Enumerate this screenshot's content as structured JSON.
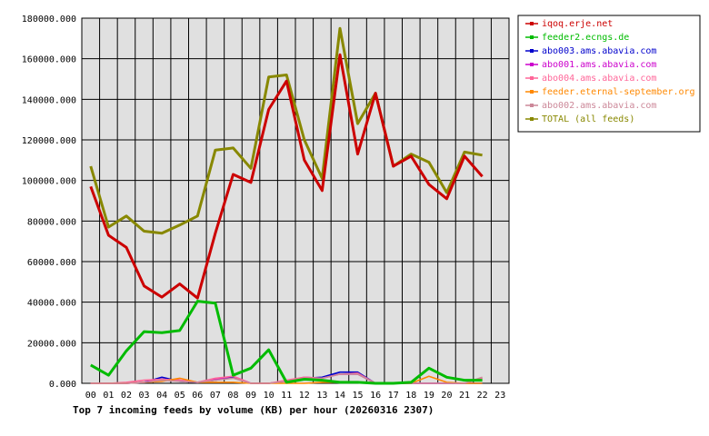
{
  "chart_data": {
    "type": "line",
    "title": "Top 7 incoming feeds by volume (KB) per hour (20260316 2307)",
    "xlabel": "",
    "ylabel": "",
    "ylim": [
      0,
      180000
    ],
    "y_ticks": [
      "0.000",
      "20000.000",
      "40000.000",
      "60000.000",
      "80000.000",
      "100000.000",
      "120000.000",
      "140000.000",
      "160000.000",
      "180000.000"
    ],
    "y_tick_values": [
      0,
      20000,
      40000,
      60000,
      80000,
      100000,
      120000,
      140000,
      160000,
      180000
    ],
    "categories": [
      "00",
      "01",
      "02",
      "03",
      "04",
      "05",
      "06",
      "07",
      "08",
      "09",
      "10",
      "11",
      "12",
      "13",
      "14",
      "15",
      "16",
      "17",
      "18",
      "19",
      "20",
      "21",
      "22",
      "23"
    ],
    "grid": true,
    "legend_position": "right",
    "series": [
      {
        "name": "iqoq.erje.net",
        "color": "#cc0000",
        "values": [
          97000,
          73000,
          67000,
          48000,
          42500,
          49000,
          42000,
          74000,
          103000,
          99000,
          135000,
          149000,
          110000,
          95000,
          162000,
          113000,
          143000,
          107000,
          112000,
          98000,
          91000,
          112000,
          102000,
          null
        ]
      },
      {
        "name": "feeder2.ecngs.de",
        "color": "#00bb00",
        "values": [
          9000,
          4000,
          16000,
          25500,
          25000,
          26000,
          40500,
          39500,
          4000,
          7500,
          16500,
          500,
          2000,
          1500,
          500,
          500,
          0,
          0,
          500,
          7500,
          3000,
          1500,
          1500,
          null
        ]
      },
      {
        "name": "abo003.ams.abavia.com",
        "color": "#0000cc",
        "values": [
          0,
          0,
          0,
          500,
          3000,
          1000,
          500,
          1500,
          3000,
          0,
          0,
          1000,
          2500,
          3000,
          5500,
          5500,
          0,
          0,
          0,
          0,
          0,
          0,
          0,
          null
        ]
      },
      {
        "name": "abo001.ams.abavia.com",
        "color": "#cc00cc",
        "values": [
          0,
          0,
          0,
          500,
          2000,
          1500,
          500,
          2000,
          3500,
          0,
          0,
          1000,
          3000,
          2500,
          4500,
          4500,
          0,
          0,
          0,
          0,
          0,
          0,
          2500,
          null
        ]
      },
      {
        "name": "abo004.ams.abavia.com",
        "color": "#ff6699",
        "values": [
          0,
          0,
          500,
          1500,
          2000,
          1500,
          500,
          2500,
          3500,
          0,
          0,
          1500,
          3000,
          2500,
          4500,
          5000,
          0,
          0,
          0,
          0,
          0,
          0,
          2500,
          null
        ]
      },
      {
        "name": "feeder.eternal-september.org",
        "color": "#ff8800",
        "values": [
          0,
          0,
          0,
          500,
          1000,
          2500,
          500,
          500,
          500,
          0,
          0,
          0,
          0,
          500,
          500,
          500,
          0,
          0,
          0,
          3500,
          500,
          0,
          0,
          null
        ]
      },
      {
        "name": "abo002.ams.abavia.com",
        "color": "#cc8899",
        "values": [
          0,
          0,
          0,
          500,
          1500,
          1000,
          500,
          1500,
          2500,
          0,
          0,
          1000,
          2500,
          2500,
          4500,
          4500,
          0,
          0,
          0,
          0,
          0,
          0,
          3000,
          null
        ]
      },
      {
        "name": "TOTAL (all feeds)",
        "color": "#888800",
        "values": [
          107000,
          77000,
          82500,
          75000,
          74000,
          78000,
          82500,
          115000,
          116000,
          106000,
          151000,
          152000,
          120000,
          101000,
          175000,
          128000,
          143000,
          107000,
          113000,
          109000,
          94000,
          114000,
          112500,
          null
        ]
      }
    ]
  }
}
